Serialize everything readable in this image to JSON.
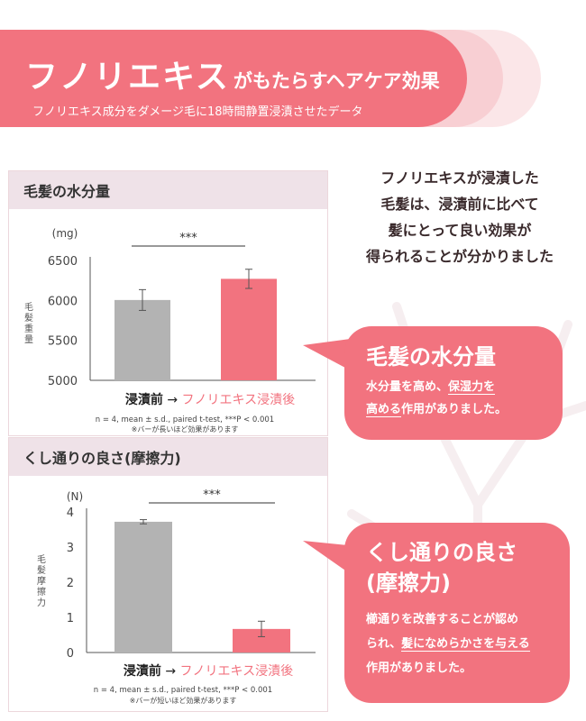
{
  "header": {
    "title_main": "フノリエキス",
    "title_sub": "がもたらすヘアケア効果",
    "subtitle": "フノリエキス成分をダメージ毛に18時間静置浸漬させたデータ"
  },
  "summary": {
    "lines": [
      "フノリエキスが浸漬した",
      "毛髪は、浸漬前に比べて",
      "髪にとって良い効果が",
      "得られることが分かりました"
    ]
  },
  "callouts": [
    {
      "title": "毛髪の水分量",
      "body_before": "水分量を高め、",
      "highlight_1": "保湿力を",
      "highlight_2": "高める",
      "body_after": "作用がありました。"
    },
    {
      "title_line1": "くし通りの良さ",
      "title_line2": "(摩擦力)",
      "body_1": "櫛通りを改善することが認め",
      "body_2": "られ、",
      "highlight": "髪になめらかさを与える",
      "body_3": "作用がありました。"
    }
  ],
  "colors": {
    "accent": "#f2737f",
    "bar_before": "#b3b3b3",
    "bar_after": "#f2737f",
    "panel_header": "#efe2e8"
  },
  "chart_data": [
    {
      "type": "bar",
      "title": "毛髪の水分量",
      "unit": "(mg)",
      "ylabel": "毛髪重量",
      "categories": [
        "浸漬前",
        "フノリエキス浸漬後"
      ],
      "arrow": "→",
      "values": [
        6005,
        6270
      ],
      "errors": [
        130,
        120
      ],
      "ylim": [
        5000,
        6500
      ],
      "yticks": [
        "6500",
        "6000",
        "5500",
        "5000"
      ],
      "significance": "***",
      "footnote_1": "n = 4, mean ± s.d., paired t-test, ***P < 0.001",
      "footnote_2": "※バーが長いほど効果があります"
    },
    {
      "type": "bar",
      "title": "くし通りの良さ(摩擦力)",
      "unit": "(N)",
      "ylabel": "毛髪摩擦力",
      "categories": [
        "浸漬前",
        "フノリエキス浸漬後"
      ],
      "arrow": "→",
      "values": [
        3.72,
        0.67
      ],
      "errors": [
        0.06,
        0.22
      ],
      "ylim": [
        0,
        4
      ],
      "yticks": [
        "4",
        "3",
        "2",
        "1",
        "0"
      ],
      "significance": "***",
      "footnote_1": "n = 4, mean ± s.d., paired t-test, ***P < 0.001",
      "footnote_2": "※バーが短いほど効果があります"
    }
  ]
}
